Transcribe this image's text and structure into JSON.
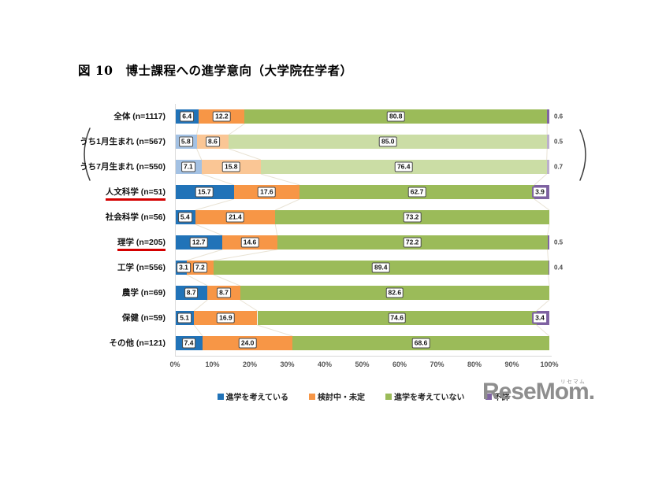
{
  "title": "図 10　博士課程への進学意向（大学院在学者）",
  "colors": {
    "series": [
      "#2173B8",
      "#F79646",
      "#9BBB59",
      "#8064A2"
    ],
    "series_faded": [
      "#A3C1E3",
      "#FAC695",
      "#CBDDA5",
      "#BCB0CC"
    ],
    "underline_red": "#D40000",
    "connector": "#E9E3D5",
    "axis_line": "#D8D8D8",
    "bracket": "#3C3C3C",
    "box_border": "#4A4A4A",
    "purple_box_border": "#7B5FA0",
    "tick_text": "#555555",
    "logo_gray": "#8E8E8E"
  },
  "chart_data": {
    "type": "bar",
    "stacked": true,
    "orientation": "horizontal",
    "xlim": [
      0,
      100
    ],
    "x_ticks": [
      "0%",
      "10%",
      "20%",
      "30%",
      "40%",
      "50%",
      "60%",
      "70%",
      "80%",
      "90%",
      "100%"
    ],
    "series_names": [
      "進学を考えている",
      "検討中・未定",
      "進学を考えていない",
      "不詳"
    ],
    "rows": [
      {
        "label": "全体 (n=1117)",
        "values": [
          6.4,
          12.2,
          80.8,
          0.6
        ],
        "faded": false,
        "underline": false,
        "last_label": "outside"
      },
      {
        "label": "うち1月生まれ (n=567)",
        "values": [
          5.8,
          8.6,
          85.0,
          0.5
        ],
        "faded": true,
        "underline": false,
        "last_label": "outside"
      },
      {
        "label": "うち7月生まれ (n=550)",
        "values": [
          7.1,
          15.8,
          76.4,
          0.7
        ],
        "faded": true,
        "underline": false,
        "last_label": "outside"
      },
      {
        "label": "人文科学 (n=51)",
        "values": [
          15.7,
          17.6,
          62.7,
          3.9
        ],
        "faded": false,
        "underline": true,
        "last_label": "boxed"
      },
      {
        "label": "社会科学 (n=56)",
        "values": [
          5.4,
          21.4,
          73.2,
          0
        ],
        "faded": false,
        "underline": false,
        "last_label": "none"
      },
      {
        "label": "理学 (n=205)",
        "values": [
          12.7,
          14.6,
          72.2,
          0.5
        ],
        "faded": false,
        "underline": true,
        "last_label": "outside"
      },
      {
        "label": "工学 (n=556)",
        "values": [
          3.1,
          7.2,
          89.4,
          0.4
        ],
        "faded": false,
        "underline": false,
        "last_label": "outside"
      },
      {
        "label": "農学 (n=69)",
        "values": [
          8.7,
          8.7,
          82.6,
          0
        ],
        "faded": false,
        "underline": false,
        "last_label": "none"
      },
      {
        "label": "保健 (n=59)",
        "values": [
          5.1,
          16.9,
          74.6,
          3.4
        ],
        "faded": false,
        "underline": false,
        "last_label": "boxed"
      },
      {
        "label": "その他 (n=121)",
        "values": [
          7.4,
          24.0,
          68.6,
          0
        ],
        "faded": false,
        "underline": false,
        "last_label": "none"
      }
    ],
    "bracket_row_group": [
      1,
      2
    ]
  },
  "legend": {
    "items": [
      {
        "label": "進学を考えている",
        "color": "#2173B8"
      },
      {
        "label": "検討中・未定",
        "color": "#F79646"
      },
      {
        "label": "進学を考えていない",
        "color": "#9BBB59"
      },
      {
        "label": "不詳",
        "color": "#8064A2"
      }
    ]
  },
  "logo": {
    "text": "ReseMom",
    "dot": ".",
    "ruby": "リセマム"
  }
}
